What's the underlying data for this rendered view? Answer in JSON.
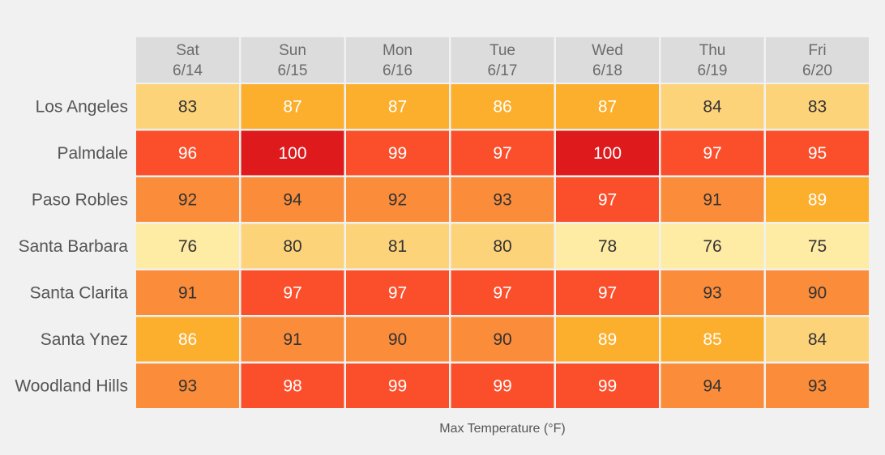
{
  "chart_data": {
    "type": "heatmap",
    "columns": [
      {
        "day": "Sat",
        "date": "6/14"
      },
      {
        "day": "Sun",
        "date": "6/15"
      },
      {
        "day": "Mon",
        "date": "6/16"
      },
      {
        "day": "Tue",
        "date": "6/17"
      },
      {
        "day": "Wed",
        "date": "6/18"
      },
      {
        "day": "Thu",
        "date": "6/19"
      },
      {
        "day": "Fri",
        "date": "6/20"
      }
    ],
    "rows": [
      {
        "city": "Los Angeles",
        "values": [
          83,
          87,
          87,
          86,
          87,
          84,
          83
        ]
      },
      {
        "city": "Palmdale",
        "values": [
          96,
          100,
          99,
          97,
          100,
          97,
          95
        ]
      },
      {
        "city": "Paso Robles",
        "values": [
          92,
          94,
          92,
          93,
          97,
          91,
          89
        ]
      },
      {
        "city": "Santa Barbara",
        "values": [
          76,
          80,
          81,
          80,
          78,
          76,
          75
        ]
      },
      {
        "city": "Santa Clarita",
        "values": [
          91,
          97,
          97,
          97,
          97,
          93,
          90
        ]
      },
      {
        "city": "Santa Ynez",
        "values": [
          86,
          91,
          90,
          90,
          89,
          85,
          84
        ]
      },
      {
        "city": "Woodland Hills",
        "values": [
          93,
          98,
          99,
          99,
          99,
          94,
          93
        ]
      }
    ],
    "xlabel": "Max Temperature (°F)",
    "header_color": "#dcdcdc",
    "color_bins": [
      {
        "min": 0,
        "max": 79,
        "color": "#feeba4",
        "text": "#333333"
      },
      {
        "min": 80,
        "max": 84,
        "color": "#fdd37a",
        "text": "#333333"
      },
      {
        "min": 85,
        "max": 89,
        "color": "#fbaf2d",
        "text": "#ffffff"
      },
      {
        "min": 90,
        "max": 94,
        "color": "#fb8c3a",
        "text": "#333333"
      },
      {
        "min": 95,
        "max": 99,
        "color": "#fb4f2c",
        "text": "#ffffff"
      },
      {
        "min": 100,
        "max": 200,
        "color": "#df1a1d",
        "text": "#ffffff"
      }
    ]
  }
}
